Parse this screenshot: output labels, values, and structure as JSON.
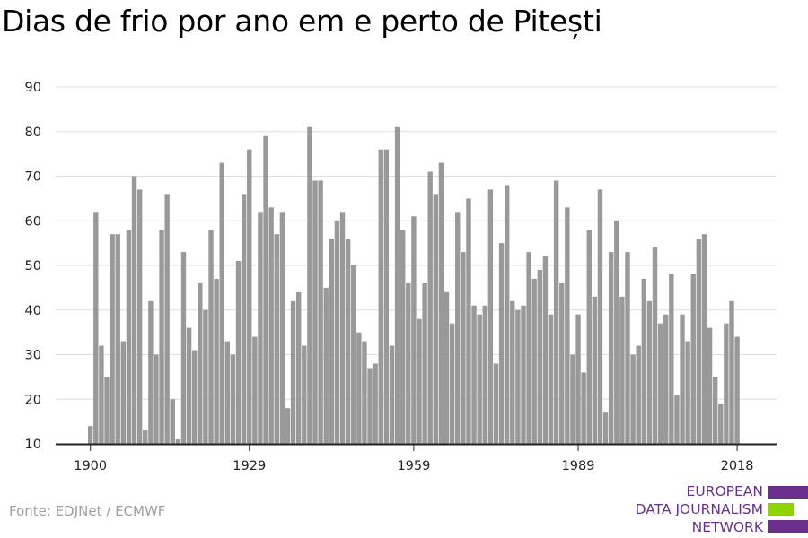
{
  "title": "Dias de frio por ano em e perto de Pitești",
  "source": "Fonte: EDJNet / ECMWF",
  "logo": {
    "lines": [
      "EUROPEAN",
      "DATA JOURNALISM",
      "NETWORK"
    ],
    "colors": {
      "purple": "#6a2e8c",
      "green": "#8fd400"
    }
  },
  "chart_data": {
    "type": "bar",
    "title": "Dias de frio por ano em e perto de Pitești",
    "xlabel": "",
    "ylabel": "",
    "ylim": [
      10,
      90
    ],
    "yticks": [
      10,
      20,
      30,
      40,
      50,
      60,
      70,
      80,
      90
    ],
    "xticks": [
      1900,
      1929,
      1959,
      1989,
      2018
    ],
    "grid": true,
    "bar_color": "#999999",
    "x_start": 1900,
    "values": [
      14,
      62,
      32,
      25,
      57,
      57,
      33,
      58,
      70,
      67,
      13,
      42,
      30,
      58,
      66,
      20,
      11,
      53,
      36,
      31,
      46,
      40,
      58,
      47,
      73,
      33,
      30,
      51,
      66,
      76,
      34,
      62,
      79,
      63,
      57,
      62,
      18,
      42,
      44,
      32,
      81,
      69,
      69,
      45,
      56,
      60,
      62,
      56,
      50,
      35,
      33,
      27,
      28,
      76,
      76,
      32,
      81,
      58,
      46,
      61,
      38,
      46,
      71,
      66,
      73,
      44,
      37,
      62,
      53,
      65,
      41,
      39,
      41,
      67,
      28,
      55,
      68,
      42,
      40,
      41,
      53,
      47,
      49,
      52,
      39,
      69,
      46,
      63,
      30,
      39,
      26,
      58,
      43,
      67,
      17,
      53,
      60,
      43,
      53,
      30,
      32,
      47,
      42,
      54,
      37,
      39,
      48,
      21,
      39,
      33,
      48,
      56,
      57,
      36,
      25,
      19,
      37,
      42,
      34
    ]
  }
}
